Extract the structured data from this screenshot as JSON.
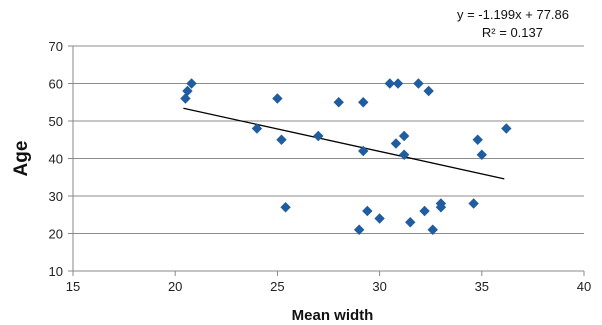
{
  "chart_data": {
    "type": "scatter",
    "xlabel": "Mean width",
    "ylabel": "Age",
    "xlim": [
      15,
      40
    ],
    "ylim": [
      10,
      70
    ],
    "xticks": [
      15,
      20,
      25,
      30,
      35,
      40
    ],
    "yticks": [
      10,
      20,
      30,
      40,
      50,
      60,
      70
    ],
    "grid": "horizontal",
    "marker_color": "#1F5DA0",
    "trendline_color": "#000000",
    "points": [
      {
        "x": 20.5,
        "y": 56
      },
      {
        "x": 20.6,
        "y": 58
      },
      {
        "x": 20.8,
        "y": 60
      },
      {
        "x": 24.0,
        "y": 48
      },
      {
        "x": 25.0,
        "y": 56
      },
      {
        "x": 25.2,
        "y": 45
      },
      {
        "x": 25.4,
        "y": 27
      },
      {
        "x": 27.0,
        "y": 46
      },
      {
        "x": 28.0,
        "y": 55
      },
      {
        "x": 29.0,
        "y": 21
      },
      {
        "x": 29.2,
        "y": 55
      },
      {
        "x": 29.2,
        "y": 42
      },
      {
        "x": 29.4,
        "y": 26
      },
      {
        "x": 30.0,
        "y": 24
      },
      {
        "x": 30.5,
        "y": 60
      },
      {
        "x": 30.8,
        "y": 44
      },
      {
        "x": 30.9,
        "y": 60
      },
      {
        "x": 31.2,
        "y": 46
      },
      {
        "x": 31.2,
        "y": 41
      },
      {
        "x": 31.5,
        "y": 23
      },
      {
        "x": 31.9,
        "y": 60
      },
      {
        "x": 32.2,
        "y": 26
      },
      {
        "x": 32.4,
        "y": 58
      },
      {
        "x": 32.6,
        "y": 21
      },
      {
        "x": 33.0,
        "y": 27
      },
      {
        "x": 33.0,
        "y": 28
      },
      {
        "x": 34.6,
        "y": 28
      },
      {
        "x": 34.8,
        "y": 45
      },
      {
        "x": 35.0,
        "y": 41
      },
      {
        "x": 36.2,
        "y": 48
      }
    ],
    "trendline": {
      "slope": -1.199,
      "intercept": 77.86,
      "x_range": [
        20.4,
        36.1
      ],
      "equation": "y = -1.199x + 77.86",
      "r2": "R² = 0.137"
    }
  }
}
